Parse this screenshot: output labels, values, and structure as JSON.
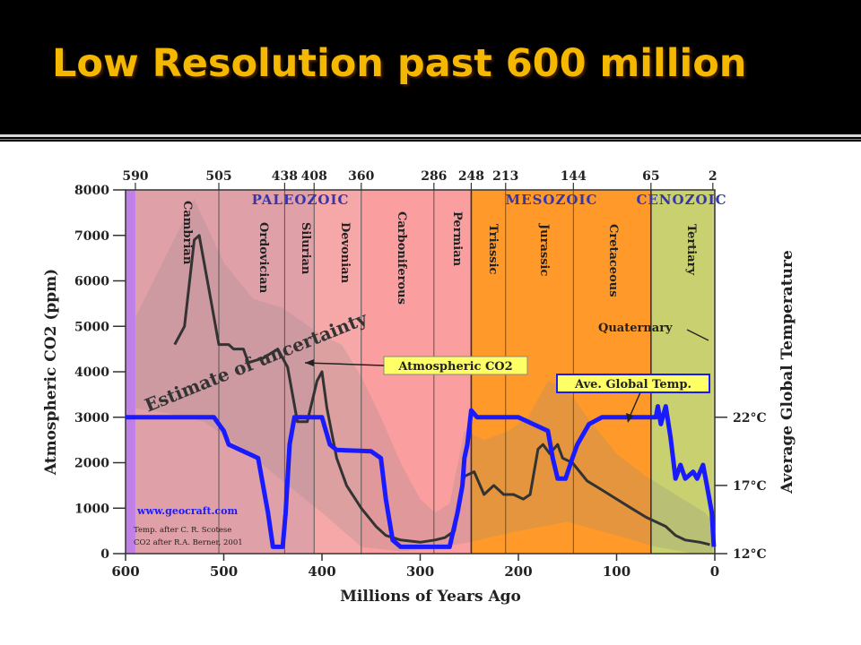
{
  "slide": {
    "title": "Low Resolution past 600 million"
  },
  "chart_data": {
    "type": "line",
    "xlabel": "Millions of Years Ago",
    "ylabel": "Atmospheric CO2 (ppm)",
    "ylabel_right": "Average Global Temperature",
    "xlim": [
      600,
      0
    ],
    "ylim": [
      0,
      8000
    ],
    "x_ticks": [
      600,
      500,
      400,
      300,
      200,
      100,
      0
    ],
    "y_ticks": [
      0,
      1000,
      2000,
      3000,
      4000,
      5000,
      6000,
      7000,
      8000
    ],
    "temp_ticks": [
      {
        "label": "22°C",
        "celsius": 22
      },
      {
        "label": "17°C",
        "celsius": 17
      },
      {
        "label": "12°C",
        "celsius": 12
      }
    ],
    "top_ticks": [
      "590",
      "505",
      "438",
      "408",
      "360",
      "286",
      "248",
      "213",
      "144",
      "65",
      "2"
    ],
    "eras": [
      {
        "name": "PALEOZOIC",
        "start": 590,
        "end": 248
      },
      {
        "name": "MESOZOIC",
        "start": 248,
        "end": 65
      },
      {
        "name": "CENOZOIC",
        "start": 65,
        "end": 2
      }
    ],
    "periods": [
      {
        "name": "Cambrian",
        "start": 590,
        "end": 505,
        "color": "#e0a0a8"
      },
      {
        "name": "Ordovician",
        "start": 505,
        "end": 438,
        "color": "#e0a0a8"
      },
      {
        "name": "Silurian",
        "start": 438,
        "end": 408,
        "color": "#e0a0a8"
      },
      {
        "name": "Devonian",
        "start": 408,
        "end": 360,
        "color": "#f6a8a8"
      },
      {
        "name": "Carboniferous",
        "start": 360,
        "end": 286,
        "color": "#fb9ea0"
      },
      {
        "name": "Permian",
        "start": 286,
        "end": 248,
        "color": "#fb9ea0"
      },
      {
        "name": "Triassic",
        "start": 248,
        "end": 213,
        "color": "#ff9a2a"
      },
      {
        "name": "Jurassic",
        "start": 213,
        "end": 144,
        "color": "#ff9a2a"
      },
      {
        "name": "Cretaceous",
        "start": 144,
        "end": 65,
        "color": "#ff9a2a"
      },
      {
        "name": "Tertiary",
        "start": 65,
        "end": 2,
        "color": "#c8d070"
      },
      {
        "name": "Quaternary",
        "start": 2,
        "end": 0,
        "color": "#c8d070"
      }
    ],
    "series": [
      {
        "name": "Atmospheric CO2",
        "color": "#333333",
        "points": [
          [
            550,
            4600
          ],
          [
            540,
            5000
          ],
          [
            530,
            6900
          ],
          [
            525,
            7000
          ],
          [
            515,
            5800
          ],
          [
            505,
            4600
          ],
          [
            495,
            4600
          ],
          [
            490,
            4500
          ],
          [
            480,
            4500
          ],
          [
            475,
            4200
          ],
          [
            460,
            4300
          ],
          [
            445,
            4500
          ],
          [
            435,
            4100
          ],
          [
            425,
            2900
          ],
          [
            415,
            2900
          ],
          [
            405,
            3800
          ],
          [
            400,
            4000
          ],
          [
            395,
            3200
          ],
          [
            385,
            2100
          ],
          [
            375,
            1500
          ],
          [
            360,
            1000
          ],
          [
            345,
            600
          ],
          [
            335,
            400
          ],
          [
            320,
            300
          ],
          [
            300,
            250
          ],
          [
            285,
            300
          ],
          [
            275,
            350
          ],
          [
            265,
            500
          ],
          [
            255,
            1700
          ],
          [
            245,
            1800
          ],
          [
            235,
            1300
          ],
          [
            225,
            1500
          ],
          [
            215,
            1300
          ],
          [
            205,
            1300
          ],
          [
            195,
            1200
          ],
          [
            188,
            1300
          ],
          [
            180,
            2300
          ],
          [
            175,
            2400
          ],
          [
            168,
            2200
          ],
          [
            160,
            2400
          ],
          [
            155,
            2100
          ],
          [
            145,
            2000
          ],
          [
            130,
            1600
          ],
          [
            115,
            1400
          ],
          [
            100,
            1200
          ],
          [
            85,
            1000
          ],
          [
            70,
            800
          ],
          [
            60,
            700
          ],
          [
            50,
            600
          ],
          [
            40,
            400
          ],
          [
            30,
            300
          ],
          [
            15,
            250
          ],
          [
            5,
            200
          ]
        ]
      },
      {
        "name": "Ave. Global Temp.",
        "color": "#1a1aff",
        "points": [
          [
            600,
            22
          ],
          [
            520,
            22
          ],
          [
            510,
            22
          ],
          [
            505,
            21.5
          ],
          [
            500,
            21
          ],
          [
            495,
            20
          ],
          [
            480,
            19.5
          ],
          [
            465,
            19
          ],
          [
            455,
            15
          ],
          [
            450,
            12.5
          ],
          [
            440,
            12.5
          ],
          [
            437,
            15
          ],
          [
            433,
            20
          ],
          [
            428,
            22
          ],
          [
            400,
            22
          ],
          [
            392,
            20
          ],
          [
            385,
            19.6
          ],
          [
            350,
            19.5
          ],
          [
            340,
            19
          ],
          [
            335,
            16
          ],
          [
            328,
            13
          ],
          [
            320,
            12.5
          ],
          [
            270,
            12.5
          ],
          [
            262,
            15
          ],
          [
            257,
            17
          ],
          [
            255,
            19
          ],
          [
            252,
            20
          ],
          [
            248,
            22.5
          ],
          [
            242,
            22
          ],
          [
            200,
            22
          ],
          [
            185,
            21.5
          ],
          [
            170,
            21
          ],
          [
            165,
            19
          ],
          [
            160,
            17.5
          ],
          [
            152,
            17.5
          ],
          [
            145,
            19
          ],
          [
            140,
            20
          ],
          [
            128,
            21.5
          ],
          [
            115,
            22
          ],
          [
            100,
            22
          ],
          [
            60,
            22
          ],
          [
            58,
            22.8
          ],
          [
            55,
            21.5
          ],
          [
            50,
            22.8
          ],
          [
            45,
            20.5
          ],
          [
            40,
            17.5
          ],
          [
            35,
            18.5
          ],
          [
            30,
            17.5
          ],
          [
            22,
            18
          ],
          [
            18,
            17.5
          ],
          [
            12,
            18.5
          ],
          [
            8,
            17
          ],
          [
            3,
            15
          ],
          [
            1,
            12.5
          ]
        ]
      }
    ],
    "annotations": [
      {
        "text": "Atmospheric CO2",
        "style": "yellow-box"
      },
      {
        "text": "Ave. Global Temp.",
        "style": "yellow-box-blue-border"
      },
      {
        "text": "Estimate of uncertainty",
        "style": "rotated"
      },
      {
        "text": "Quaternary",
        "style": "plain"
      },
      {
        "text": "www.geocraft.com",
        "style": "blue"
      },
      {
        "text": "Temp. after C. R. Scotese",
        "style": "small"
      },
      {
        "text": "CO2 after R.A. Berner, 2001",
        "style": "small"
      }
    ]
  }
}
